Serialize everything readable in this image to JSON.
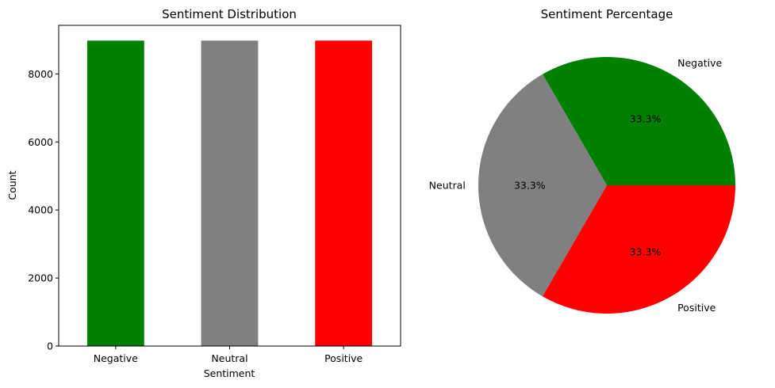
{
  "chart_data": [
    {
      "type": "bar",
      "title": "Sentiment Distribution",
      "xlabel": "Sentiment",
      "ylabel": "Count",
      "categories": [
        "Negative",
        "Neutral",
        "Positive"
      ],
      "values": [
        8980,
        8980,
        8980
      ],
      "colors": [
        "#008000",
        "#808080",
        "#ff0000"
      ],
      "ylim": [
        0,
        9429
      ],
      "yticks": [
        0,
        2000,
        4000,
        6000,
        8000
      ],
      "grid": false
    },
    {
      "type": "pie",
      "title": "Sentiment Percentage",
      "labels": [
        "Negative",
        "Neutral",
        "Positive"
      ],
      "values": [
        33.3,
        33.3,
        33.3
      ],
      "value_labels": [
        "33.3%",
        "33.3%",
        "33.3%"
      ],
      "colors": [
        "#008000",
        "#808080",
        "#ff0000"
      ],
      "start_angle": 0
    }
  ]
}
